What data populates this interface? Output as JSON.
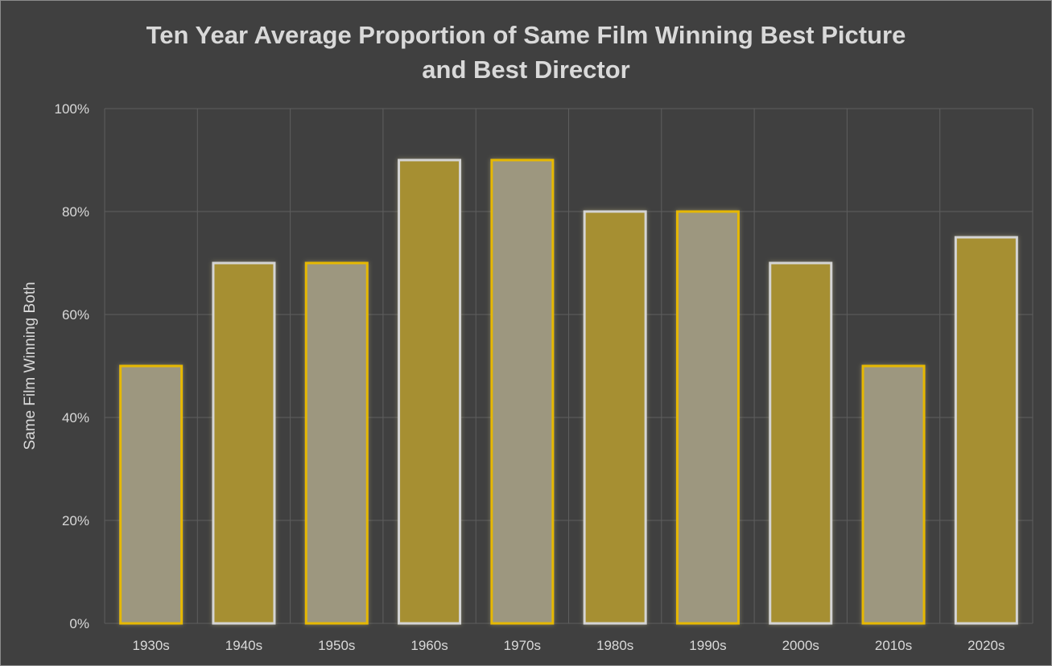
{
  "chart_data": {
    "type": "bar",
    "title_lines": [
      "Ten Year Average Proportion of Same Film Winning Best Picture",
      "and Best Director"
    ],
    "xlabel": "",
    "ylabel": "Same Film Winning Both",
    "categories": [
      "1930s",
      "1940s",
      "1950s",
      "1960s",
      "1970s",
      "1980s",
      "1990s",
      "2000s",
      "2010s",
      "2020s"
    ],
    "values": [
      50,
      70,
      70,
      90,
      90,
      80,
      80,
      70,
      50,
      75
    ],
    "ylim": [
      0,
      100
    ],
    "yticks": [
      "0%",
      "20%",
      "40%",
      "60%",
      "80%",
      "100%"
    ],
    "grid": true,
    "bar_styles": [
      {
        "fill": "#9d977f",
        "stroke": "#e6b800"
      },
      {
        "fill": "#a68f30",
        "stroke": "#d4d4d4"
      }
    ]
  },
  "colors": {
    "background": "#404040",
    "gridline": "#5e5e5e",
    "text": "#d9d9d9"
  }
}
